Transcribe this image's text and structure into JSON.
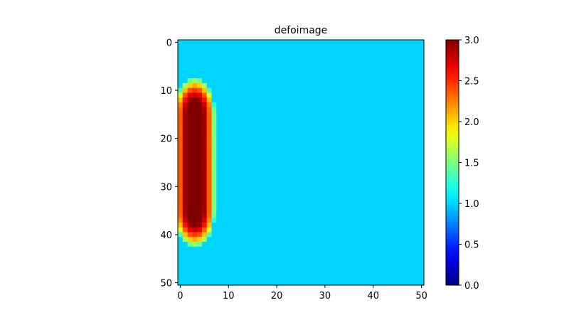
{
  "chart_data": {
    "type": "heatmap",
    "title": "defoimage",
    "xlabel": "",
    "ylabel": "",
    "rows": 51,
    "cols": 51,
    "x_ticks": [
      0,
      10,
      20,
      30,
      40,
      50
    ],
    "y_ticks": [
      0,
      10,
      20,
      30,
      40,
      50
    ],
    "colormap": "jet",
    "vmin": 0.0,
    "vmax": 3.0,
    "colorbar_ticks": [
      "0.0",
      "0.5",
      "1.0",
      "1.5",
      "2.0",
      "2.5",
      "3.0"
    ],
    "background_value": 1.0,
    "feature": {
      "description_value_range": [
        1.0,
        3.0
      ],
      "col_center": 3,
      "row_center": 25,
      "peak_value": 3.0,
      "peak_rows": [
        11,
        38
      ],
      "peak_cols": [
        1,
        5
      ]
    },
    "colors": {
      "background_cell": "#00d4ff"
    }
  }
}
